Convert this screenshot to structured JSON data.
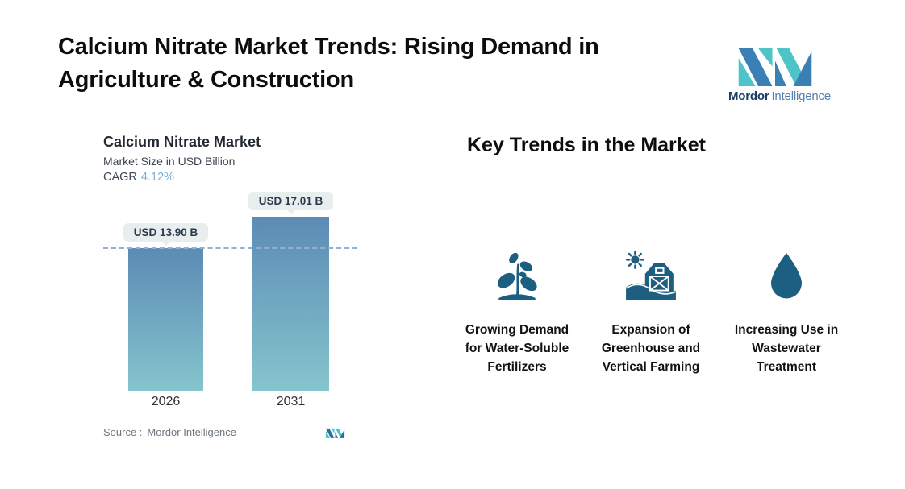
{
  "page_title": "Calcium Nitrate Market Trends: Rising Demand in Agriculture & Construction",
  "page_title_lines": [
    "Calcium Nitrate Market Trends: Rising Demand in",
    "Agriculture & Construction"
  ],
  "brand": {
    "name_primary": "Mordor",
    "name_secondary": "Intelligence",
    "color_blue": "#3b7fb5",
    "color_teal": "#4ec4c9",
    "color_navy": "#1c3e63"
  },
  "chart_header": {
    "title": "Calcium Nitrate Market",
    "subtitle": "Market Size in USD Billion",
    "cagr_label": "CAGR",
    "cagr_value": "4.12%",
    "cagr_value_color": "#79b0d6"
  },
  "chart_data": {
    "type": "bar",
    "title": "Calcium Nitrate Market",
    "subtitle": "Market Size in USD Billion",
    "cagr_pct": 4.12,
    "categories": [
      "2026",
      "2031"
    ],
    "values": [
      13.9,
      17.01
    ],
    "value_labels": [
      "USD 13.90 B",
      "USD 17.01 B"
    ],
    "unit": "USD Billion",
    "ylim": [
      0,
      17.01
    ],
    "grid": false,
    "legend": false,
    "bar_gradient_top": "#5c8bb5",
    "bar_gradient_bottom": "#85c5cd",
    "reference_line": {
      "value": 13.9,
      "style": "dashed",
      "color": "#8fafd6"
    }
  },
  "source": {
    "label": "Source :",
    "value": "Mordor Intelligence"
  },
  "key_trends": {
    "heading": "Key Trends in the Market",
    "icon_color": "#1d5f80",
    "items": [
      {
        "icon": "plant-icon",
        "label": "Growing Demand for Water-Soluble Fertilizers"
      },
      {
        "icon": "barn-icon",
        "label": "Expansion of Greenhouse and Vertical Farming"
      },
      {
        "icon": "droplet-icon",
        "label": "Increasing Use in Wastewater Treatment"
      }
    ]
  }
}
